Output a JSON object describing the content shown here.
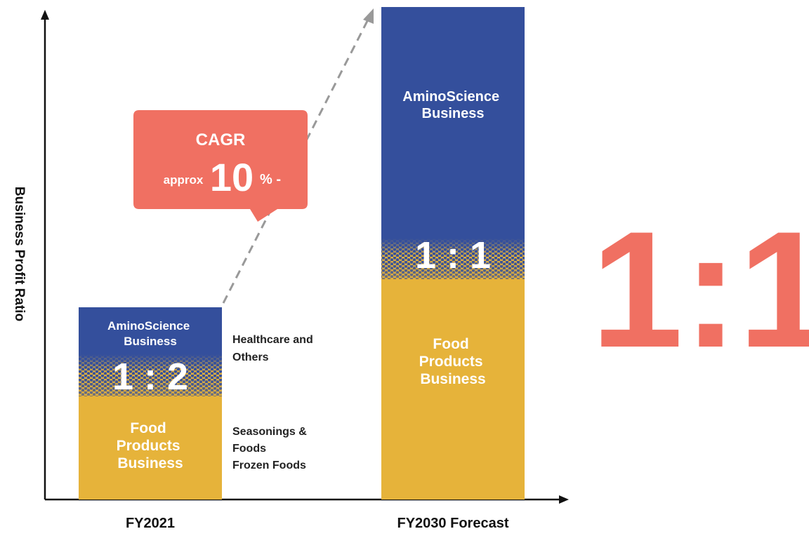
{
  "y_axis_label": "Business Profit Ratio",
  "bars": [
    {
      "label": "FY2021",
      "ratio": "1 : 2",
      "top_segment": [
        "AminoScience",
        "Business"
      ],
      "bottom_segment": [
        "Food",
        "Products",
        "Business"
      ]
    },
    {
      "label": "FY2030 Forecast",
      "ratio": "1 : 1",
      "top_segment": [
        "AminoScience",
        "Business"
      ],
      "bottom_segment": [
        "Food",
        "Products",
        "Business"
      ]
    }
  ],
  "side_labels": {
    "top": [
      "Healthcare and",
      "Others"
    ],
    "bottom": [
      "Seasonings &",
      "Foods",
      "Frozen Foods"
    ]
  },
  "callout": {
    "title": "CAGR",
    "prefix": "approx",
    "value": "10",
    "suffix": "% -"
  },
  "big_ratio": "1:1"
}
